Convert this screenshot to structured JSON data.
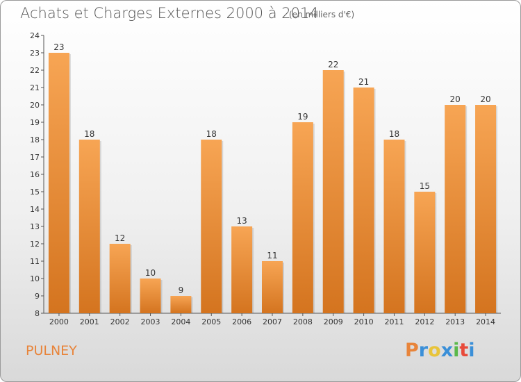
{
  "chart_data": {
    "type": "bar",
    "title": "Achats et Charges Externes 2000 à 2014",
    "subtitle": "(en milliers d'€)",
    "categories": [
      "2000",
      "2001",
      "2002",
      "2003",
      "2004",
      "2005",
      "2006",
      "2007",
      "2008",
      "2009",
      "2010",
      "2011",
      "2012",
      "2013",
      "2014"
    ],
    "values": [
      23,
      18,
      12,
      10,
      9,
      18,
      13,
      11,
      19,
      22,
      21,
      18,
      15,
      20,
      20
    ],
    "ylim": [
      8,
      24
    ],
    "yticks": [
      8,
      9,
      10,
      11,
      12,
      13,
      14,
      15,
      16,
      17,
      18,
      19,
      20,
      21,
      22,
      23,
      24
    ],
    "grid": false,
    "bar_color": "#f0903a"
  },
  "footer": {
    "commune": "PULNEY",
    "logo": "Proxiti",
    "logo_colors": [
      "#e8843a",
      "#3a8fd8",
      "#e8c43a",
      "#3a8fd8",
      "#5ab84a",
      "#e84a3a",
      "#3a8fd8"
    ]
  }
}
